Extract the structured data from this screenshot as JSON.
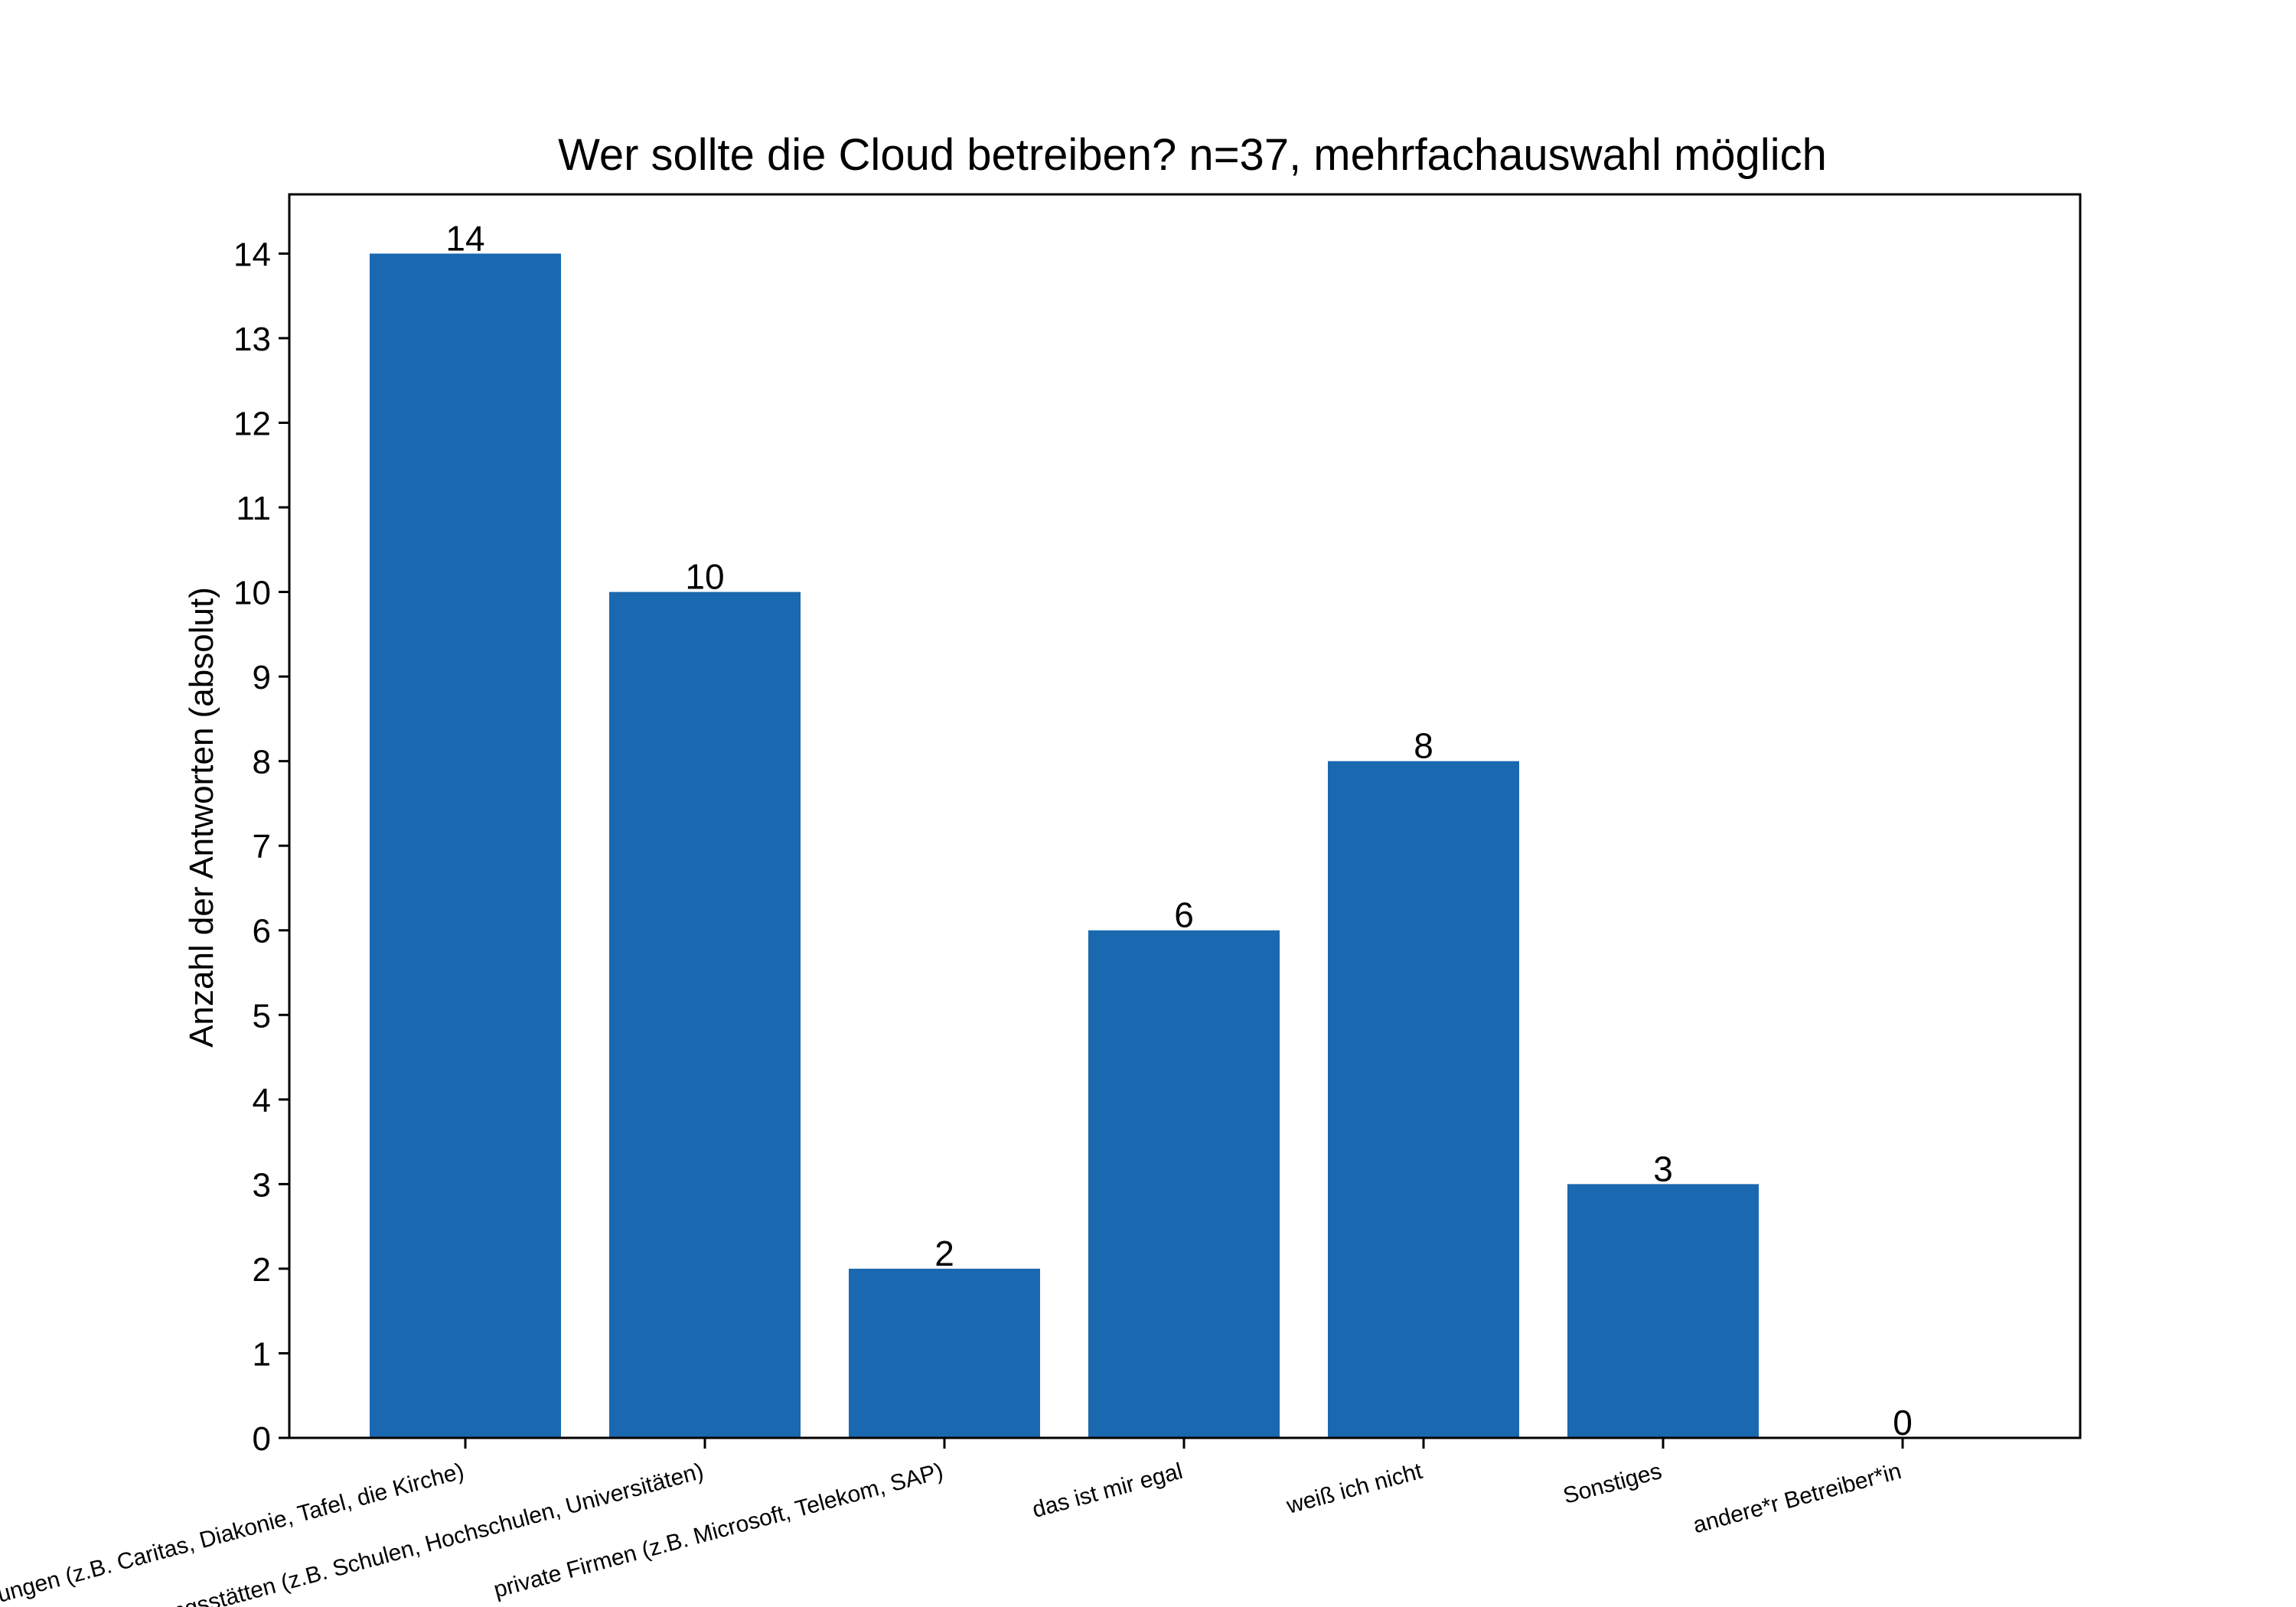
{
  "chart_data": {
    "type": "bar",
    "title": "Wer sollte die Cloud betreiben? n=37, mehrfachauswahl möglich",
    "xlabel": "",
    "ylabel": "Anzahl der Antworten (absolut)",
    "categories": [
      "soziale Einrichtungen (z.B. Caritas, Diakonie, Tafel, die Kirche)",
      "Bildungsstätten (z.B. Schulen, Hochschulen, Universitäten)",
      "private Firmen (z.B. Microsoft, Telekom, SAP)",
      "das ist mir egal",
      "weiß ich nicht",
      "Sonstiges",
      "andere*r Betreiber*in"
    ],
    "values": [
      14,
      10,
      2,
      6,
      8,
      3,
      0
    ],
    "data_labels": [
      "14",
      "10",
      "2",
      "6",
      "8",
      "3",
      "0"
    ],
    "ylim": [
      0,
      14.7
    ],
    "yticks": [
      0,
      1,
      2,
      3,
      4,
      5,
      6,
      7,
      8,
      9,
      10,
      11,
      12,
      13,
      14
    ],
    "ytick_labels": [
      "0",
      "1",
      "2",
      "3",
      "4",
      "5",
      "6",
      "7",
      "8",
      "9",
      "10",
      "11",
      "12",
      "13",
      "14"
    ],
    "grid": false,
    "bar_color": "#1a68b0"
  }
}
